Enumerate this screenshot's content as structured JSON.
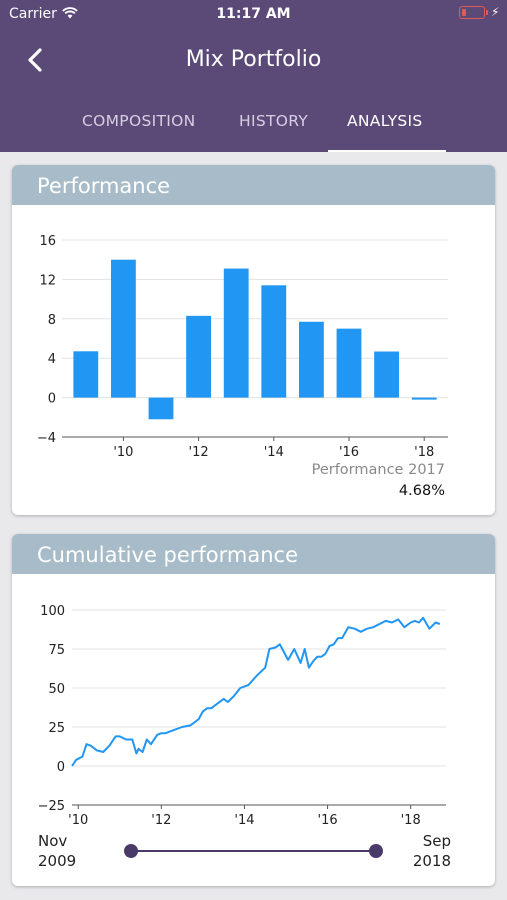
{
  "status_bar": {
    "carrier": "Carrier",
    "time": "11:17 AM",
    "battery_color": "#e05a5a"
  },
  "nav": {
    "title": "Mix Portfolio",
    "back_icon": "chevron-left-icon"
  },
  "tabs": [
    {
      "label": "COMPOSITION",
      "active": false
    },
    {
      "label": "HISTORY",
      "active": false
    },
    {
      "label": "ANALYSIS",
      "active": true
    }
  ],
  "performance_card": {
    "title": "Performance",
    "selected_label": "Performance 2017",
    "selected_value": "4.68%"
  },
  "cumulative_card": {
    "title": "Cumulative performance",
    "range_start_month": "Nov",
    "range_start_year": "2009",
    "range_end_month": "Sep",
    "range_end_year": "2018"
  },
  "colors": {
    "header": "#5b4a78",
    "card_header": "#a7bcc8",
    "series": "#2196f3",
    "slider": "#4a3a6a"
  },
  "chart_data": [
    {
      "type": "bar",
      "categories": [
        "2009",
        "2010",
        "2011",
        "2012",
        "2013",
        "2014",
        "2015",
        "2016",
        "2017",
        "2018"
      ],
      "values": [
        4.7,
        14.0,
        -2.2,
        8.3,
        13.1,
        11.4,
        7.7,
        7.0,
        4.68,
        -0.2
      ],
      "ylim": [
        -4,
        16
      ],
      "yticks": [
        "16",
        "12",
        "8",
        "4",
        "0",
        "−4"
      ],
      "xticks": [
        "'10",
        "'12",
        "'14",
        "'16",
        "'18"
      ],
      "grid": true
    },
    {
      "type": "line",
      "x": [
        2009.85,
        2009.95,
        2010.1,
        2010.2,
        2010.3,
        2010.45,
        2010.6,
        2010.75,
        2010.9,
        2011.0,
        2011.15,
        2011.3,
        2011.4,
        2011.45,
        2011.55,
        2011.65,
        2011.75,
        2011.9,
        2012.0,
        2012.1,
        2012.3,
        2012.5,
        2012.7,
        2012.9,
        2013.0,
        2013.1,
        2013.2,
        2013.35,
        2013.5,
        2013.6,
        2013.75,
        2013.9,
        2014.1,
        2014.3,
        2014.5,
        2014.6,
        2014.75,
        2014.85,
        2014.95,
        2015.05,
        2015.2,
        2015.35,
        2015.45,
        2015.55,
        2015.65,
        2015.75,
        2015.85,
        2015.95,
        2016.05,
        2016.15,
        2016.25,
        2016.35,
        2016.5,
        2016.65,
        2016.8,
        2016.95,
        2017.1,
        2017.25,
        2017.4,
        2017.55,
        2017.7,
        2017.85,
        2018.0,
        2018.1,
        2018.2,
        2018.3,
        2018.45,
        2018.6,
        2018.7
      ],
      "y": [
        0,
        4,
        6,
        14,
        13,
        10,
        9,
        13,
        19,
        19,
        17,
        17,
        8,
        11,
        9,
        17,
        14,
        20,
        21,
        21,
        23,
        25,
        26,
        30,
        35,
        37,
        37,
        40,
        43,
        41,
        45,
        50,
        52,
        58,
        63,
        75,
        76,
        78,
        73,
        68,
        75,
        66,
        75,
        63,
        67,
        70,
        70,
        72,
        77,
        78,
        82,
        82,
        89,
        88,
        86,
        88,
        89,
        91,
        93,
        92,
        94,
        89,
        92,
        93,
        92,
        95,
        88,
        92,
        91
      ],
      "ylim": [
        -25,
        100
      ],
      "yticks": [
        "100",
        "75",
        "50",
        "25",
        "0",
        "−25"
      ],
      "xticks": [
        "'10",
        "'12",
        "'14",
        "'16",
        "'18"
      ],
      "grid": true
    }
  ]
}
